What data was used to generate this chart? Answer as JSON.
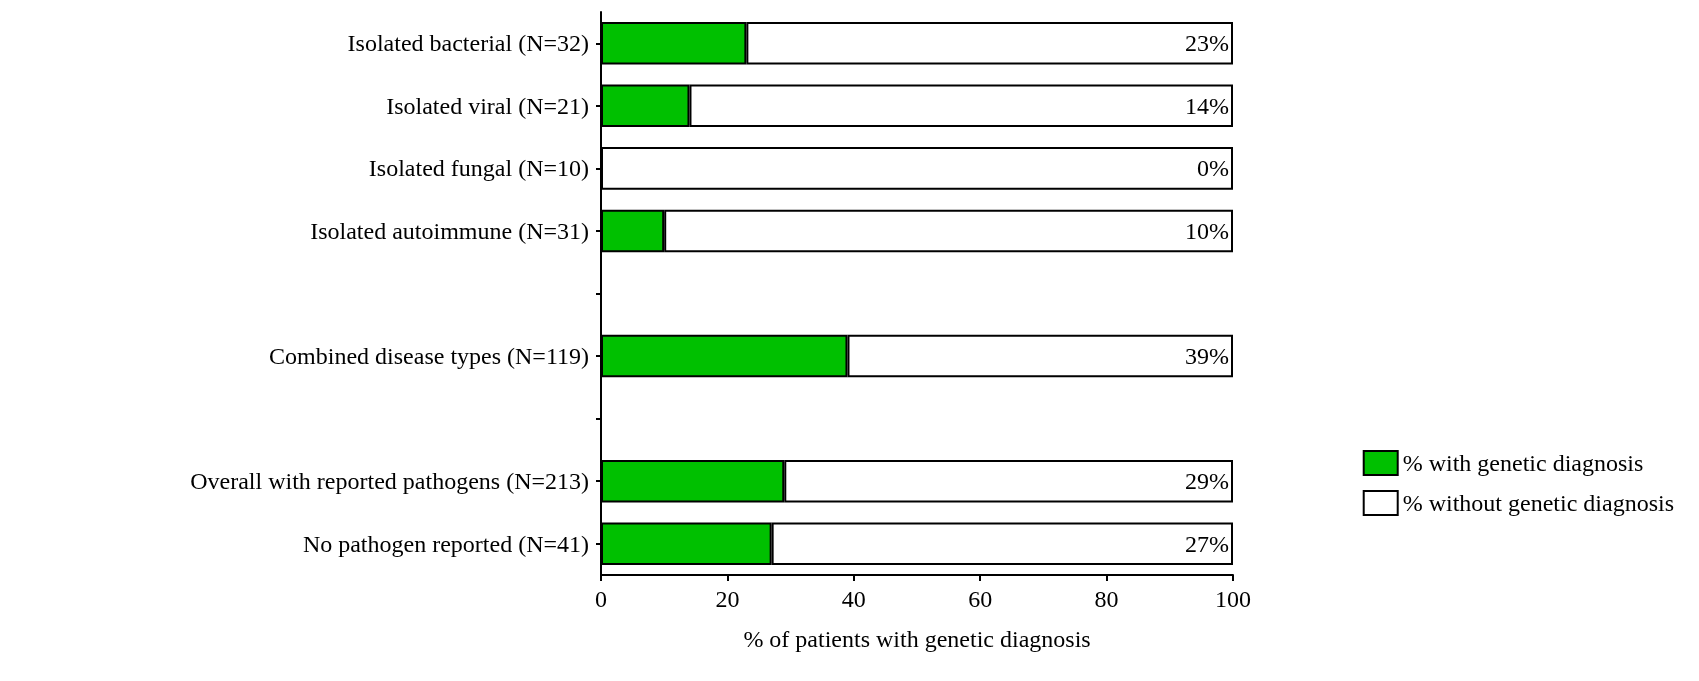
{
  "chart_data": {
    "type": "bar",
    "orientation": "horizontal",
    "stacked": true,
    "xlabel": "% of patients with genetic diagnosis",
    "categories": [
      "Isolated bacterial (N=32)",
      "Isolated viral (N=21)",
      "Isolated fungal (N=10)",
      "Isolated autoimmune (N=31)",
      null,
      "Combined disease types (N=119)",
      null,
      "Overall with reported pathogens (N=213)",
      "No pathogen reported (N=41)"
    ],
    "series": [
      {
        "name": "% with genetic diagnosis",
        "color": "#00c000",
        "values": [
          23,
          14,
          0,
          10,
          null,
          39,
          null,
          29,
          27
        ]
      },
      {
        "name": "% without genetic diagnosis",
        "color": "#ffffff",
        "values": [
          77,
          86,
          100,
          90,
          null,
          61,
          null,
          71,
          73
        ]
      }
    ],
    "xlim": [
      0,
      100
    ],
    "xticks": [
      0,
      20,
      40,
      60,
      80,
      100
    ],
    "annotations": [
      "23%",
      "14%",
      "0%",
      "10%",
      "39%",
      "29%",
      "27%"
    ],
    "grid": false,
    "legend": "bottom right"
  }
}
